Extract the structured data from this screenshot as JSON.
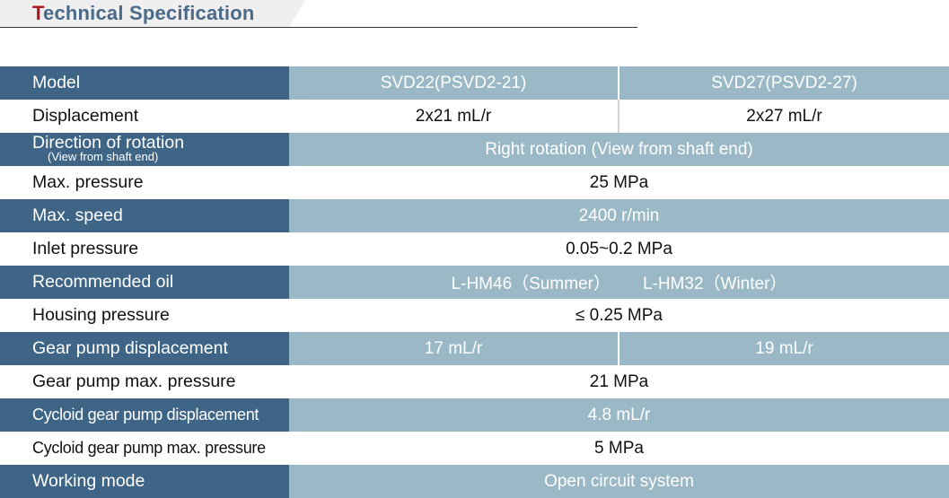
{
  "header": {
    "title_first": "T",
    "title_rest": "echnical Specification"
  },
  "table": {
    "model": {
      "label": "Model",
      "v1": "SVD22(PSVD2-21)",
      "v2": "SVD27(PSVD2-27)"
    },
    "displacement": {
      "label": "Displacement",
      "v1": "2x21 mL/r",
      "v2": "2x27 mL/r"
    },
    "direction": {
      "label": "Direction of rotation",
      "sub": "(View from shaft end)",
      "value": "Right rotation (View from shaft end)"
    },
    "max_pressure": {
      "label": "Max. pressure",
      "value": "25 MPa"
    },
    "max_speed": {
      "label": "Max. speed",
      "value": "2400 r/min"
    },
    "inlet_pressure": {
      "label": "Inlet pressure",
      "value": "0.05~0.2 MPa"
    },
    "recommended_oil": {
      "label": "Recommended oil",
      "v1": "L-HM46（Summer）",
      "v2": "L-HM32（Winter）"
    },
    "housing_pressure": {
      "label": "Housing pressure",
      "value": "≤ 0.25 MPa"
    },
    "gear_pump_displacement": {
      "label": "Gear pump displacement",
      "v1": "17 mL/r",
      "v2": "19 mL/r"
    },
    "gear_pump_max_pressure": {
      "label": "Gear pump max. pressure",
      "value": "21 MPa"
    },
    "cycloid_displacement": {
      "label": "Cycloid gear pump displacement",
      "value": "4.8 mL/r"
    },
    "cycloid_max_pressure": {
      "label": "Cycloid gear pump max. pressure",
      "value": "5 MPa"
    },
    "working_mode": {
      "label": "Working mode",
      "value": "Open circuit system"
    }
  },
  "colors": {
    "title": "#4a6a88",
    "title_accent": "#b01822",
    "label_dark": "#3f6586",
    "row_dark": "#9ab8c6"
  }
}
